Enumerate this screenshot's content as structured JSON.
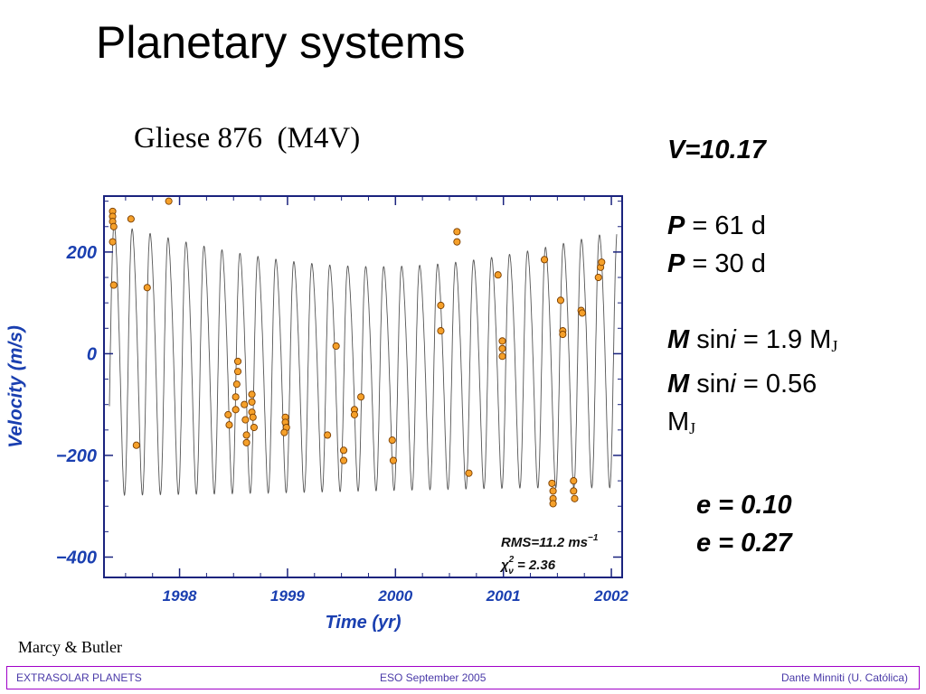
{
  "slide": {
    "title": "Planetary systems",
    "subtitle": "Gliese 876  (M4V)",
    "credit": "Marcy & Butler"
  },
  "params": {
    "magnitude": "V=10.17",
    "period_label": "P",
    "period_1": " = 61 d",
    "period_2": " = 30 d",
    "mass_label": "M",
    "sin_text": " sin",
    "i_text": "i",
    "mass_1": " = 1.9 M",
    "mass_2": " = 0.56",
    "mass_unit": "M",
    "jupiter_sub": "J",
    "ecc_1": "e = 0.10",
    "ecc_2": "e = 0.27"
  },
  "footer": {
    "left": "EXTRASOLAR PLANETS",
    "center": "ESO  September 2005",
    "right": "Dante Minniti (U. Católica)"
  },
  "chart_data": {
    "type": "scatter",
    "xlabel": "Time (yr)",
    "ylabel": "Velocity (m/s)",
    "xlim": [
      1997.3,
      2002.1
    ],
    "ylim": [
      -440,
      310
    ],
    "x_ticks": [
      1998,
      1999,
      2000,
      2001,
      2002
    ],
    "x_tick_labels": [
      "1998",
      "1999",
      "2000",
      "2001",
      "2002"
    ],
    "y_ticks": [
      200,
      0,
      -200,
      -400
    ],
    "y_tick_labels": [
      "200",
      "0",
      "−200",
      "−400"
    ],
    "annotation_rms": "RMS=11.2 ms",
    "annotation_rms_sup": "−1",
    "annotation_chi": "χ",
    "annotation_chi_sup": "2",
    "annotation_chi_sub": "ν",
    "annotation_chi_val": " = 2.36",
    "axis_color": "#1a237e",
    "label_color": "#1a3fb0",
    "point_color": "#f5a02a",
    "model": {
      "name": "two-planet Keplerian fit",
      "period_yr": 0.1665,
      "base_amp": 270,
      "amp_drift": 50,
      "offset_start": 5,
      "offset_dip": -40
    },
    "points": [
      {
        "x": 1997.38,
        "y": 280
      },
      {
        "x": 1997.38,
        "y": 270
      },
      {
        "x": 1997.38,
        "y": 260
      },
      {
        "x": 1997.39,
        "y": 250
      },
      {
        "x": 1997.38,
        "y": 220
      },
      {
        "x": 1997.39,
        "y": 135
      },
      {
        "x": 1997.55,
        "y": 265
      },
      {
        "x": 1997.6,
        "y": -180
      },
      {
        "x": 1997.7,
        "y": 130
      },
      {
        "x": 1997.9,
        "y": 300
      },
      {
        "x": 1998.45,
        "y": -120
      },
      {
        "x": 1998.46,
        "y": -140
      },
      {
        "x": 1998.52,
        "y": -110
      },
      {
        "x": 1998.52,
        "y": -85
      },
      {
        "x": 1998.53,
        "y": -60
      },
      {
        "x": 1998.54,
        "y": -35
      },
      {
        "x": 1998.54,
        "y": -15
      },
      {
        "x": 1998.6,
        "y": -100
      },
      {
        "x": 1998.61,
        "y": -130
      },
      {
        "x": 1998.62,
        "y": -160
      },
      {
        "x": 1998.62,
        "y": -175
      },
      {
        "x": 1998.67,
        "y": -80
      },
      {
        "x": 1998.67,
        "y": -95
      },
      {
        "x": 1998.67,
        "y": -115
      },
      {
        "x": 1998.68,
        "y": -125
      },
      {
        "x": 1998.69,
        "y": -145
      },
      {
        "x": 1998.98,
        "y": -125
      },
      {
        "x": 1998.98,
        "y": -135
      },
      {
        "x": 1998.99,
        "y": -145
      },
      {
        "x": 1998.97,
        "y": -155
      },
      {
        "x": 1999.37,
        "y": -160
      },
      {
        "x": 1999.45,
        "y": 15
      },
      {
        "x": 1999.52,
        "y": -190
      },
      {
        "x": 1999.52,
        "y": -210
      },
      {
        "x": 1999.62,
        "y": -110
      },
      {
        "x": 1999.62,
        "y": -120
      },
      {
        "x": 1999.68,
        "y": -85
      },
      {
        "x": 1999.97,
        "y": -170
      },
      {
        "x": 1999.98,
        "y": -210
      },
      {
        "x": 2000.42,
        "y": 95
      },
      {
        "x": 2000.42,
        "y": 45
      },
      {
        "x": 2000.57,
        "y": 240
      },
      {
        "x": 2000.57,
        "y": 220
      },
      {
        "x": 2000.68,
        "y": -235
      },
      {
        "x": 2000.95,
        "y": 155
      },
      {
        "x": 2000.99,
        "y": 25
      },
      {
        "x": 2000.99,
        "y": 10
      },
      {
        "x": 2000.99,
        "y": -5
      },
      {
        "x": 2001.38,
        "y": 185
      },
      {
        "x": 2001.45,
        "y": -255
      },
      {
        "x": 2001.46,
        "y": -270
      },
      {
        "x": 2001.46,
        "y": -285
      },
      {
        "x": 2001.46,
        "y": -295
      },
      {
        "x": 2001.53,
        "y": 105
      },
      {
        "x": 2001.55,
        "y": 45
      },
      {
        "x": 2001.55,
        "y": 38
      },
      {
        "x": 2001.65,
        "y": -250
      },
      {
        "x": 2001.65,
        "y": -270
      },
      {
        "x": 2001.66,
        "y": -285
      },
      {
        "x": 2001.72,
        "y": 85
      },
      {
        "x": 2001.73,
        "y": 80
      },
      {
        "x": 2001.88,
        "y": 150
      },
      {
        "x": 2001.9,
        "y": 170
      },
      {
        "x": 2001.91,
        "y": 180
      }
    ]
  }
}
